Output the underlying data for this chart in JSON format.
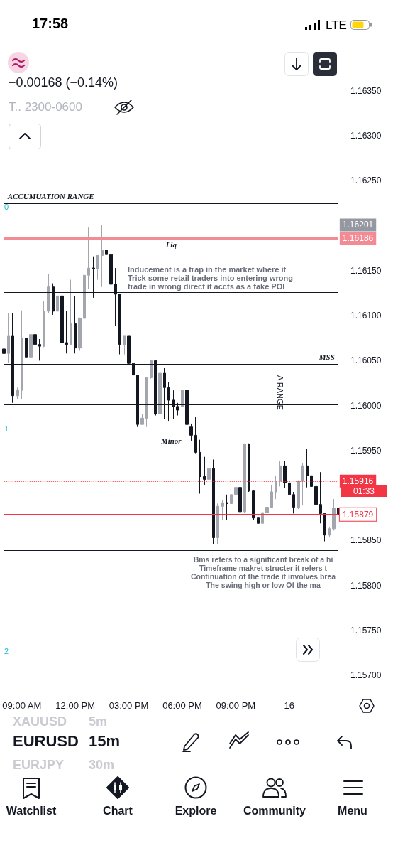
{
  "chart_data": {
    "type": "candlestick",
    "title": "EURUSD",
    "subtitle": "15m",
    "categories": [
      null,
      null,
      null,
      null,
      "09:00 AM",
      null,
      null,
      null,
      null,
      null,
      null,
      null,
      null,
      null,
      null,
      null,
      "12:00 PM",
      null,
      null,
      null,
      null,
      null,
      null,
      null,
      null,
      null,
      null,
      null,
      "03:00 PM",
      null,
      null,
      null,
      null,
      null,
      null,
      null,
      null,
      null,
      null,
      null,
      "06:00 PM",
      null,
      null,
      null,
      null,
      null,
      null,
      null,
      null,
      null,
      null,
      null,
      "09:00 PM",
      null,
      null,
      null,
      null,
      null,
      null,
      null,
      null,
      null,
      null,
      null,
      "16",
      null,
      null,
      null,
      null,
      null,
      null,
      null,
      null,
      null,
      null,
      null
    ],
    "ohlc": [
      [
        1.16063,
        1.16082,
        1.16042,
        1.16058
      ],
      [
        1.16058,
        1.16103,
        1.16048,
        1.16078
      ],
      [
        1.16078,
        1.16103,
        1.16003,
        1.16011
      ],
      [
        1.16011,
        1.1602,
        1.16007,
        1.16017
      ],
      [
        1.16017,
        1.16106,
        1.16007,
        1.16075
      ],
      [
        1.16075,
        1.16105,
        1.16042,
        1.16054
      ],
      [
        1.16054,
        1.16105,
        1.16052,
        1.16079
      ],
      [
        1.16079,
        1.1609,
        1.1605,
        1.16068
      ],
      [
        1.16068,
        1.16074,
        1.1605,
        1.16066
      ],
      [
        1.16066,
        1.16116,
        1.16065,
        1.16105
      ],
      [
        1.16105,
        1.16146,
        1.16103,
        1.16132
      ],
      [
        1.16132,
        1.16136,
        1.16101,
        1.16105
      ],
      [
        1.16105,
        1.16142,
        1.16105,
        1.16122
      ],
      [
        1.16122,
        1.16122,
        1.16068,
        1.1607
      ],
      [
        1.1607,
        1.16105,
        1.16058,
        1.16068
      ],
      [
        1.16068,
        1.1614,
        1.16068,
        1.16091
      ],
      [
        1.16091,
        1.16122,
        1.16058,
        1.16064
      ],
      [
        1.16064,
        1.16098,
        1.16061,
        1.16097
      ],
      [
        1.16097,
        1.16145,
        1.16085,
        1.16145
      ],
      [
        1.16145,
        1.16198,
        1.1613,
        1.16153
      ],
      [
        1.16153,
        1.16166,
        1.1612,
        1.16152
      ],
      [
        1.16152,
        1.16167,
        1.1614,
        1.16167
      ],
      [
        1.16167,
        1.16201,
        1.16132,
        1.16173
      ],
      [
        1.16173,
        1.16186,
        1.16142,
        1.16168
      ],
      [
        1.16168,
        1.16186,
        1.16132,
        1.16135
      ],
      [
        1.16135,
        1.16153,
        1.16089,
        1.16124
      ],
      [
        1.16124,
        1.16124,
        1.16057,
        1.16068
      ],
      [
        1.16068,
        1.16078,
        1.16057,
        1.16078
      ],
      [
        1.16078,
        1.16078,
        1.16046,
        1.16047
      ],
      [
        1.16047,
        1.16065,
        1.16015,
        1.16034
      ],
      [
        1.16034,
        1.16034,
        1.15977,
        1.15979
      ],
      [
        1.15979,
        1.15991,
        1.15979,
        1.15986
      ],
      [
        1.15986,
        1.16031,
        1.15977,
        1.16031
      ],
      [
        1.16031,
        1.16051,
        1.1603,
        1.1605
      ],
      [
        1.1605,
        1.16051,
        1.15989,
        1.15991
      ],
      [
        1.15991,
        1.16053,
        1.15987,
        1.16036
      ],
      [
        1.16036,
        1.16042,
        1.15985,
        1.1602
      ],
      [
        1.1602,
        1.16026,
        1.15983,
        1.16006
      ],
      [
        1.16006,
        1.16017,
        1.15985,
        1.15999
      ],
      [
        1.15999,
        1.16003,
        1.15989,
        1.15995
      ],
      [
        1.15999,
        1.1603,
        1.15987,
        1.16017
      ],
      [
        1.16017,
        1.16019,
        1.15977,
        1.15979
      ],
      [
        1.15977,
        1.1598,
        1.15961,
        1.15967
      ],
      [
        1.15967,
        1.15987,
        1.15947,
        1.15948
      ],
      [
        1.15948,
        1.15962,
        1.15902,
        1.15921
      ],
      [
        1.15921,
        1.15943,
        1.15912,
        1.15918
      ],
      [
        1.15918,
        1.15943,
        1.15914,
        1.1593
      ],
      [
        1.1593,
        1.1594,
        1.15846,
        1.15853
      ],
      [
        1.15853,
        1.15891,
        1.15846,
        1.15888
      ],
      [
        1.15888,
        1.15895,
        1.15873,
        1.15892
      ],
      [
        1.15892,
        1.15901,
        1.15873,
        1.15891
      ],
      [
        1.15891,
        1.15908,
        1.15875,
        1.15901
      ],
      [
        1.15901,
        1.15954,
        1.15888,
        1.15909
      ],
      [
        1.15909,
        1.1591,
        1.15881,
        1.15882
      ],
      [
        1.15882,
        1.15958,
        1.15881,
        1.15957
      ],
      [
        1.15957,
        1.15958,
        1.15904,
        1.15905
      ],
      [
        1.15905,
        1.15906,
        1.15873,
        1.15875
      ],
      [
        1.15875,
        1.15877,
        1.15857,
        1.15869
      ],
      [
        1.15869,
        1.15881,
        1.15865,
        1.15881
      ],
      [
        1.15881,
        1.15897,
        1.15873,
        1.15887
      ],
      [
        1.15887,
        1.15912,
        1.15887,
        1.15904
      ],
      [
        1.15904,
        1.15922,
        1.15896,
        1.15916
      ],
      [
        1.15916,
        1.15938,
        1.1591,
        1.15933
      ],
      [
        1.15933,
        1.15938,
        1.15908,
        1.15914
      ],
      [
        1.15914,
        1.15922,
        1.15898,
        1.15901
      ],
      [
        1.15901,
        1.15904,
        1.1588,
        1.15887
      ],
      [
        1.15887,
        1.15917,
        1.15885,
        1.15916
      ],
      [
        1.15916,
        1.15936,
        1.15889,
        1.15933
      ],
      [
        1.15933,
        1.15952,
        1.15909,
        1.15922
      ],
      [
        1.15922,
        1.15928,
        1.15895,
        1.1591
      ],
      [
        1.1591,
        1.15926,
        1.15889,
        1.1589
      ],
      [
        1.1589,
        1.15926,
        1.15869,
        1.1588
      ],
      [
        1.1588,
        1.1588,
        1.15849,
        1.15856
      ],
      [
        1.15856,
        1.15865,
        1.15854,
        1.15863
      ],
      [
        1.15863,
        1.15896,
        1.15861,
        1.15886
      ],
      [
        1.15886,
        1.1589,
        1.15879,
        1.15879
      ]
    ],
    "ylim": [
      1.157,
      1.1635
    ],
    "yticks": [
      {
        "value": 1.157,
        "label": "1.15700"
      },
      {
        "value": 1.1575,
        "label": "1.15750"
      },
      {
        "value": 1.158,
        "label": "1.15800"
      },
      {
        "value": 1.1585,
        "label": "1.15850"
      },
      {
        "value": 1.1595,
        "label": "1.15950"
      },
      {
        "value": 1.16,
        "label": "1.16000"
      },
      {
        "value": 1.1605,
        "label": "1.16050"
      },
      {
        "value": 1.161,
        "label": "1.16100"
      },
      {
        "value": 1.1615,
        "label": "1.16150"
      },
      {
        "value": 1.1625,
        "label": "1.16250"
      },
      {
        "value": 1.163,
        "label": "1.16300"
      },
      {
        "value": 1.1635,
        "label": "1.16350"
      }
    ],
    "ref_lines": [
      {
        "axis": "y",
        "value": 1.16225,
        "label": "ACCUMUATION RANGE",
        "color": "#131722"
      },
      {
        "axis": "y",
        "value": 1.16201,
        "label": "1.16201",
        "color": "#9598a1"
      },
      {
        "axis": "y",
        "value": 1.16186,
        "label": "1.16186",
        "color": "#f28b94"
      },
      {
        "axis": "y",
        "value": 1.16171,
        "label": "Liq",
        "color": "#131722"
      },
      {
        "axis": "y",
        "value": 1.16126,
        "color": "#131722"
      },
      {
        "axis": "y",
        "value": 1.16046,
        "label": "MSS",
        "color": "#131722"
      },
      {
        "axis": "y",
        "value": 1.16001,
        "color": "#131722"
      },
      {
        "axis": "y",
        "value": 1.15969,
        "label": "Minor",
        "color": "#131722"
      },
      {
        "axis": "y",
        "value": 1.15916,
        "label": "1.15916",
        "color": "#f23645",
        "line_style": "dotted"
      },
      {
        "axis": "y",
        "value": 1.15879,
        "label": "1.15879",
        "color": "#f23645"
      },
      {
        "axis": "y",
        "value": 1.15839,
        "color": "#131722"
      }
    ],
    "annotations": [
      "−0.00168 (−0.14%)",
      "T.. 2300-0600",
      "Inducement is a trap in the market where it\nTrick some retail traders into entering wrong\ntrade in wrong direct it accts as a fake POI",
      "Bms refers to a significant break of a hi\nTimeframe makret structer it refers t\nContinuation of the trade it involves brea\nThe swing high or low Of the ma",
      "A RANGE",
      "01:33",
      "0",
      "1",
      "2",
      "17:58",
      "LTE",
      "XAUUSD",
      "5m",
      "EURJPY",
      "30m",
      "Watchlist",
      "Chart",
      "Explore",
      "Community",
      "Menu"
    ]
  }
}
